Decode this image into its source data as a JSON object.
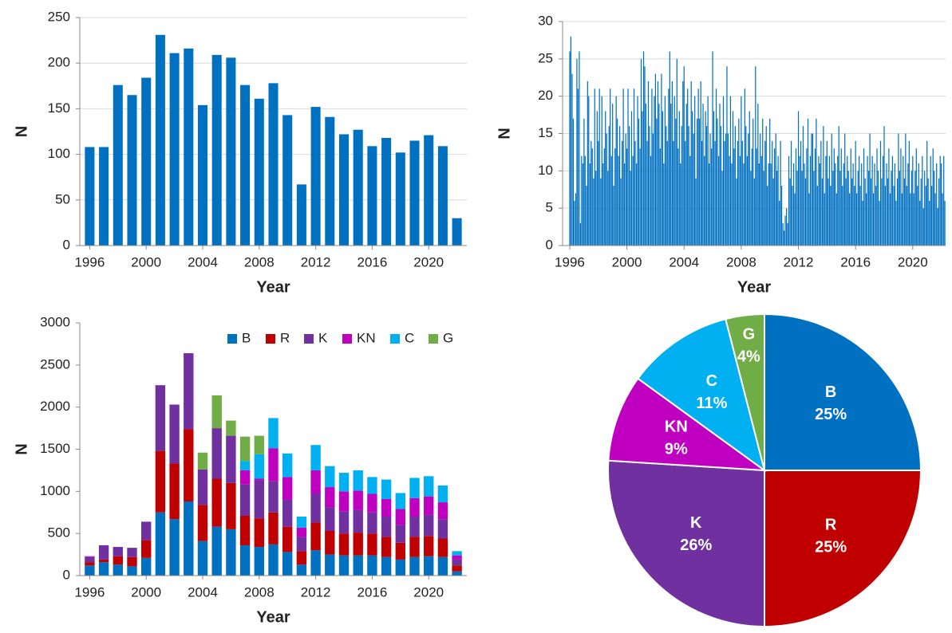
{
  "chart_data": [
    {
      "type": "bar",
      "x_label": "Year",
      "y_label": "N",
      "color": "#0070c0",
      "grid": true,
      "x": [
        1996,
        1997,
        1998,
        1999,
        2000,
        2001,
        2002,
        2003,
        2004,
        2005,
        2006,
        2007,
        2008,
        2009,
        2010,
        2011,
        2012,
        2013,
        2014,
        2015,
        2016,
        2017,
        2018,
        2019,
        2020,
        2021,
        2022
      ],
      "values": [
        108,
        108,
        176,
        165,
        184,
        231,
        211,
        216,
        154,
        209,
        206,
        176,
        161,
        178,
        143,
        67,
        152,
        141,
        122,
        127,
        109,
        118,
        102,
        115,
        121,
        109,
        30
      ],
      "xlim": [
        1995.3,
        2022.7
      ],
      "xticks": [
        1996,
        2000,
        2004,
        2008,
        2012,
        2016,
        2020
      ],
      "ylim": [
        0,
        250
      ],
      "yticks": [
        0,
        50,
        100,
        150,
        200,
        250
      ]
    },
    {
      "type": "bar",
      "x_label": "Year",
      "y_label": "N",
      "color": "#0070c0",
      "grid": true,
      "x": [
        1996,
        1996.08,
        1996.17,
        1996.25,
        1996.33,
        1996.42,
        1996.5,
        1996.58,
        1996.67,
        1996.75,
        1996.83,
        1996.92,
        1997,
        1997.08,
        1997.17,
        1997.25,
        1997.33,
        1997.42,
        1997.5,
        1997.58,
        1997.67,
        1997.75,
        1997.83,
        1997.92,
        1998,
        1998.08,
        1998.17,
        1998.25,
        1998.33,
        1998.42,
        1998.5,
        1998.58,
        1998.67,
        1998.75,
        1998.83,
        1998.92,
        1999,
        1999.08,
        1999.17,
        1999.25,
        1999.33,
        1999.42,
        1999.5,
        1999.58,
        1999.67,
        1999.75,
        1999.83,
        1999.92,
        2000,
        2000.08,
        2000.17,
        2000.25,
        2000.33,
        2000.42,
        2000.5,
        2000.58,
        2000.67,
        2000.75,
        2000.83,
        2000.92,
        2001,
        2001.08,
        2001.17,
        2001.25,
        2001.33,
        2001.42,
        2001.5,
        2001.58,
        2001.67,
        2001.75,
        2001.83,
        2001.92,
        2002,
        2002.08,
        2002.17,
        2002.25,
        2002.33,
        2002.42,
        2002.5,
        2002.58,
        2002.67,
        2002.75,
        2002.83,
        2002.92,
        2003,
        2003.08,
        2003.17,
        2003.25,
        2003.33,
        2003.42,
        2003.5,
        2003.58,
        2003.67,
        2003.75,
        2003.83,
        2003.92,
        2004,
        2004.08,
        2004.17,
        2004.25,
        2004.33,
        2004.42,
        2004.5,
        2004.58,
        2004.67,
        2004.75,
        2004.83,
        2004.92,
        2005,
        2005.08,
        2005.17,
        2005.25,
        2005.33,
        2005.42,
        2005.5,
        2005.58,
        2005.67,
        2005.75,
        2005.83,
        2005.92,
        2006,
        2006.08,
        2006.17,
        2006.25,
        2006.33,
        2006.42,
        2006.5,
        2006.58,
        2006.67,
        2006.75,
        2006.83,
        2006.92,
        2007,
        2007.08,
        2007.17,
        2007.25,
        2007.33,
        2007.42,
        2007.5,
        2007.58,
        2007.67,
        2007.75,
        2007.83,
        2007.92,
        2008,
        2008.08,
        2008.17,
        2008.25,
        2008.33,
        2008.42,
        2008.5,
        2008.58,
        2008.67,
        2008.75,
        2008.83,
        2008.92,
        2009,
        2009.08,
        2009.17,
        2009.25,
        2009.33,
        2009.42,
        2009.5,
        2009.58,
        2009.67,
        2009.75,
        2009.83,
        2009.92,
        2010,
        2010.08,
        2010.17,
        2010.25,
        2010.33,
        2010.42,
        2010.5,
        2010.58,
        2010.67,
        2010.75,
        2010.83,
        2010.92,
        2011,
        2011.08,
        2011.17,
        2011.25,
        2011.33,
        2011.42,
        2011.5,
        2011.58,
        2011.67,
        2011.75,
        2011.83,
        2011.92,
        2012,
        2012.08,
        2012.17,
        2012.25,
        2012.33,
        2012.42,
        2012.5,
        2012.58,
        2012.67,
        2012.75,
        2012.83,
        2012.92,
        2013,
        2013.08,
        2013.17,
        2013.25,
        2013.33,
        2013.42,
        2013.5,
        2013.58,
        2013.67,
        2013.75,
        2013.83,
        2013.92,
        2014,
        2014.08,
        2014.17,
        2014.25,
        2014.33,
        2014.42,
        2014.5,
        2014.58,
        2014.67,
        2014.75,
        2014.83,
        2014.92,
        2015,
        2015.08,
        2015.17,
        2015.25,
        2015.33,
        2015.42,
        2015.5,
        2015.58,
        2015.67,
        2015.75,
        2015.83,
        2015.92,
        2016,
        2016.08,
        2016.17,
        2016.25,
        2016.33,
        2016.42,
        2016.5,
        2016.58,
        2016.67,
        2016.75,
        2016.83,
        2016.92,
        2017,
        2017.08,
        2017.17,
        2017.25,
        2017.33,
        2017.42,
        2017.5,
        2017.58,
        2017.67,
        2017.75,
        2017.83,
        2017.92,
        2018,
        2018.08,
        2018.17,
        2018.25,
        2018.33,
        2018.42,
        2018.5,
        2018.58,
        2018.67,
        2018.75,
        2018.83,
        2018.92,
        2019,
        2019.08,
        2019.17,
        2019.25,
        2019.33,
        2019.42,
        2019.5,
        2019.58,
        2019.67,
        2019.75,
        2019.83,
        2019.92,
        2020,
        2020.08,
        2020.17,
        2020.25,
        2020.33,
        2020.42,
        2020.5,
        2020.58,
        2020.67,
        2020.75,
        2020.83,
        2020.92,
        2021,
        2021.08,
        2021.17,
        2021.25,
        2021.33,
        2021.42,
        2021.5,
        2021.58,
        2021.67,
        2021.75,
        2021.83,
        2021.92,
        2022,
        2022.08,
        2022.17,
        2022.25
      ],
      "values": [
        26,
        28,
        23,
        17,
        6,
        7,
        25,
        21,
        26,
        3,
        12,
        11,
        17,
        12,
        8,
        22,
        20,
        11,
        14,
        13,
        9,
        21,
        10,
        18,
        14,
        21,
        9,
        20,
        11,
        13,
        18,
        15,
        10,
        16,
        21,
        12,
        19,
        8,
        13,
        20,
        17,
        12,
        16,
        9,
        14,
        21,
        11,
        15,
        13,
        21,
        16,
        10,
        18,
        12,
        21,
        14,
        11,
        20,
        17,
        13,
        25,
        18,
        26,
        24,
        19,
        14,
        22,
        16,
        12,
        21,
        15,
        20,
        23,
        17,
        22,
        19,
        13,
        23,
        18,
        11,
        20,
        16,
        14,
        21,
        26,
        19,
        22,
        14,
        20,
        17,
        25,
        13,
        18,
        11,
        16,
        22,
        24,
        14,
        19,
        21,
        16,
        12,
        22,
        18,
        15,
        20,
        9,
        17,
        21,
        17,
        22,
        14,
        19,
        12,
        18,
        16,
        20,
        11,
        15,
        13,
        26,
        18,
        14,
        21,
        17,
        12,
        19,
        16,
        10,
        20,
        14,
        15,
        24,
        15,
        12,
        20,
        11,
        18,
        13,
        16,
        9,
        14,
        17,
        12,
        20,
        14,
        11,
        21,
        16,
        12,
        15,
        18,
        10,
        13,
        17,
        9,
        24,
        13,
        19,
        11,
        15,
        12,
        17,
        10,
        14,
        16,
        8,
        11,
        17,
        11,
        14,
        9,
        13,
        15,
        10,
        12,
        6,
        14,
        8,
        3,
        2,
        4,
        5,
        3,
        12,
        9,
        14,
        8,
        11,
        7,
        13,
        10,
        18,
        12,
        14,
        10,
        16,
        11,
        9,
        13,
        17,
        7,
        12,
        15,
        15,
        10,
        13,
        17,
        8,
        12,
        11,
        14,
        9,
        16,
        7,
        12,
        14,
        9,
        12,
        8,
        15,
        10,
        13,
        11,
        7,
        12,
        16,
        10,
        13,
        8,
        11,
        15,
        9,
        12,
        10,
        7,
        13,
        9,
        11,
        8,
        14,
        7,
        10,
        12,
        8,
        11,
        6,
        13,
        9,
        7,
        12,
        10,
        15,
        9,
        12,
        7,
        11,
        8,
        13,
        10,
        6,
        14,
        9,
        12,
        16,
        8,
        11,
        9,
        13,
        7,
        10,
        12,
        8,
        11,
        6,
        9,
        15,
        10,
        13,
        7,
        12,
        9,
        15,
        8,
        11,
        14,
        7,
        10,
        12,
        7,
        10,
        13,
        8,
        11,
        6,
        9,
        12,
        5,
        10,
        8,
        14,
        9,
        6,
        12,
        8,
        13,
        10,
        7,
        11,
        5,
        9,
        12,
        11,
        7,
        12,
        6
      ],
      "xlim": [
        1995.5,
        2022.3
      ],
      "xticks": [
        1996,
        2000,
        2004,
        2008,
        2012,
        2016,
        2020
      ],
      "ylim": [
        0,
        30
      ],
      "yticks": [
        0,
        5,
        10,
        15,
        20,
        25,
        30
      ]
    },
    {
      "type": "stacked_bar",
      "x_label": "Year",
      "y_label": "N",
      "grid": false,
      "legend": "upper right",
      "x": [
        1996,
        1997,
        1998,
        1999,
        2000,
        2001,
        2002,
        2003,
        2004,
        2005,
        2006,
        2007,
        2008,
        2009,
        2010,
        2011,
        2012,
        2013,
        2014,
        2015,
        2016,
        2017,
        2018,
        2019,
        2020,
        2021,
        2022
      ],
      "series": [
        {
          "name": "B",
          "color": "#0070c0",
          "values": [
            120,
            160,
            130,
            110,
            210,
            750,
            670,
            880,
            410,
            580,
            550,
            360,
            340,
            370,
            280,
            130,
            300,
            250,
            240,
            240,
            240,
            220,
            190,
            220,
            230,
            220,
            50
          ]
        },
        {
          "name": "R",
          "color": "#c00000",
          "values": [
            40,
            30,
            100,
            110,
            210,
            730,
            660,
            860,
            430,
            570,
            550,
            350,
            340,
            380,
            300,
            160,
            330,
            280,
            260,
            270,
            260,
            240,
            200,
            240,
            240,
            220,
            70
          ]
        },
        {
          "name": "K",
          "color": "#7030a0",
          "values": [
            60,
            170,
            110,
            110,
            220,
            780,
            700,
            900,
            420,
            600,
            560,
            370,
            450,
            370,
            320,
            170,
            340,
            280,
            260,
            270,
            250,
            240,
            210,
            240,
            250,
            230,
            70
          ]
        },
        {
          "name": "KN",
          "color": "#c000c0",
          "values": [
            10,
            0,
            0,
            0,
            0,
            0,
            0,
            0,
            0,
            0,
            0,
            170,
            20,
            390,
            270,
            110,
            280,
            240,
            240,
            230,
            220,
            210,
            190,
            220,
            220,
            200,
            50
          ]
        },
        {
          "name": "C",
          "color": "#00b0f0",
          "values": [
            0,
            0,
            0,
            0,
            0,
            0,
            0,
            0,
            0,
            0,
            0,
            110,
            290,
            360,
            280,
            130,
            300,
            250,
            220,
            240,
            200,
            230,
            190,
            240,
            240,
            200,
            50
          ]
        },
        {
          "name": "G",
          "color": "#70ad47",
          "values": [
            0,
            0,
            0,
            0,
            0,
            0,
            0,
            0,
            200,
            390,
            180,
            290,
            220,
            0,
            0,
            0,
            0,
            0,
            0,
            0,
            0,
            0,
            0,
            0,
            0,
            0,
            0
          ]
        }
      ],
      "xlim": [
        1995.3,
        2022.7
      ],
      "xticks": [
        1996,
        2000,
        2004,
        2008,
        2012,
        2016,
        2020
      ],
      "ylim": [
        0,
        3000
      ],
      "yticks": [
        0,
        500,
        1000,
        1500,
        2000,
        2500,
        3000
      ]
    },
    {
      "type": "pie",
      "categories": [
        "B",
        "R",
        "K",
        "KN",
        "C",
        "G"
      ],
      "values": [
        25,
        25,
        26,
        9,
        11,
        4
      ],
      "value_labels": [
        "25%",
        "25%",
        "26%",
        "9%",
        "11%",
        "4%"
      ],
      "colors": [
        "#0070c0",
        "#c00000",
        "#7030a0",
        "#c000c0",
        "#00b0f0",
        "#70ad47"
      ]
    }
  ]
}
